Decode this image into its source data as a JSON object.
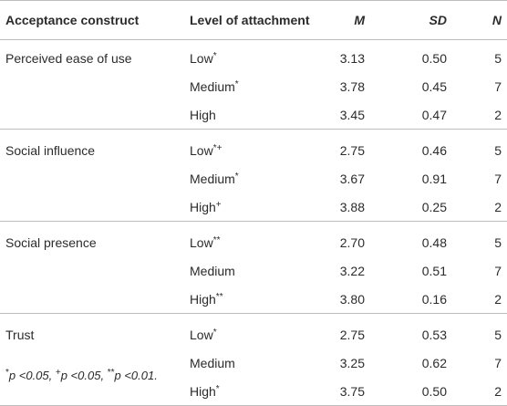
{
  "table": {
    "headers": {
      "construct": "Acceptance construct",
      "level": "Level of attachment",
      "m": "M",
      "sd": "SD",
      "n": "N"
    },
    "groups": [
      {
        "construct": "Perceived ease of use",
        "rows": [
          {
            "level": "Low",
            "mark": "*",
            "m": "3.13",
            "sd": "0.50",
            "n": "5"
          },
          {
            "level": "Medium",
            "mark": "*",
            "m": "3.78",
            "sd": "0.45",
            "n": "7"
          },
          {
            "level": "High",
            "mark": "",
            "m": "3.45",
            "sd": "0.47",
            "n": "2"
          }
        ]
      },
      {
        "construct": "Social influence",
        "rows": [
          {
            "level": "Low",
            "mark": "*+",
            "m": "2.75",
            "sd": "0.46",
            "n": "5"
          },
          {
            "level": "Medium",
            "mark": "*",
            "m": "3.67",
            "sd": "0.91",
            "n": "7"
          },
          {
            "level": "High",
            "mark": "+",
            "m": "3.88",
            "sd": "0.25",
            "n": "2"
          }
        ]
      },
      {
        "construct": "Social presence",
        "rows": [
          {
            "level": "Low",
            "mark": "**",
            "m": "2.70",
            "sd": "0.48",
            "n": "5"
          },
          {
            "level": "Medium",
            "mark": "",
            "m": "3.22",
            "sd": "0.51",
            "n": "7"
          },
          {
            "level": "High",
            "mark": "**",
            "m": "3.80",
            "sd": "0.16",
            "n": "2"
          }
        ]
      },
      {
        "construct": "Trust",
        "rows": [
          {
            "level": "Low",
            "mark": "*",
            "m": "2.75",
            "sd": "0.53",
            "n": "5"
          },
          {
            "level": "Medium",
            "mark": "",
            "m": "3.25",
            "sd": "0.62",
            "n": "7"
          },
          {
            "level": "High",
            "mark": "*",
            "m": "3.75",
            "sd": "0.50",
            "n": "2"
          }
        ]
      }
    ]
  },
  "footnote": {
    "parts": [
      {
        "mark": "*",
        "text": "p <0.05, "
      },
      {
        "mark": "+",
        "text": "p <0.05, "
      },
      {
        "mark": "**",
        "text": "p <0.01."
      }
    ]
  }
}
